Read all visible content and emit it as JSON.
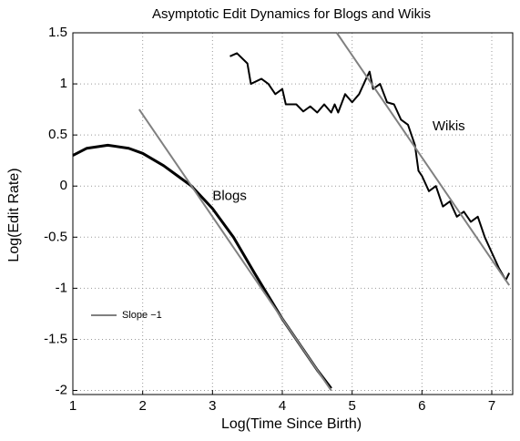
{
  "chart_data": {
    "type": "line",
    "title": "Asymptotic Edit Dynamics for Blogs and Wikis",
    "x_label": "Log(Time Since Birth)",
    "y_label": "Log(Edit Rate)",
    "xlim": [
      1,
      7.3
    ],
    "ylim": [
      -2.04,
      1.5
    ],
    "xticks": [
      1,
      2,
      3,
      4,
      5,
      6,
      7
    ],
    "yticks": [
      -2,
      -1.5,
      -1,
      -0.5,
      0,
      0.5,
      1,
      1.5
    ],
    "grid": true,
    "legend": "lower left",
    "series": [
      {
        "color": "#000000",
        "width": 3,
        "x": [
          1,
          1.2,
          1.5,
          1.8,
          2.0,
          2.3,
          2.5,
          2.7,
          3.0,
          3.3,
          3.6,
          4.0,
          4.3,
          4.5,
          4.7
        ],
        "values": [
          0.3,
          0.37,
          0.4,
          0.37,
          0.32,
          0.2,
          0.1,
          0,
          -0.22,
          -0.5,
          -0.85,
          -1.3,
          -1.6,
          -1.8,
          -1.98
        ]
      },
      {
        "color": "#000000",
        "width": 2,
        "x": [
          3.25,
          3.35,
          3.5,
          3.55,
          3.7,
          3.8,
          3.9,
          4.0,
          4.05,
          4.2,
          4.3,
          4.4,
          4.5,
          4.6,
          4.7,
          4.75,
          4.8,
          4.9,
          5.0,
          5.1,
          5.2,
          5.25,
          5.3,
          5.4,
          5.5,
          5.6,
          5.7,
          5.8,
          5.9,
          5.95,
          6.0,
          6.1,
          6.2,
          6.3,
          6.4,
          6.5,
          6.6,
          6.7,
          6.8,
          6.9,
          7.0,
          7.1,
          7.2,
          7.25
        ],
        "values": [
          1.27,
          1.3,
          1.2,
          1.0,
          1.05,
          1.0,
          0.9,
          0.95,
          0.8,
          0.8,
          0.73,
          0.78,
          0.72,
          0.8,
          0.72,
          0.8,
          0.72,
          0.9,
          0.82,
          0.9,
          1.05,
          1.12,
          0.95,
          1.0,
          0.82,
          0.8,
          0.65,
          0.6,
          0.4,
          0.15,
          0.1,
          -0.05,
          0.0,
          -0.2,
          -0.15,
          -0.3,
          -0.25,
          -0.35,
          -0.3,
          -0.5,
          -0.65,
          -0.8,
          -0.92,
          -0.85
        ]
      },
      {
        "name": "Slope −1",
        "color": "#808080",
        "width": 2,
        "x": [
          1.95,
          4.7
        ],
        "values": [
          0.75,
          -2
        ]
      },
      {
        "color": "#808080",
        "width": 2,
        "x": [
          4.78,
          7.25
        ],
        "values": [
          1.5,
          -0.97
        ]
      }
    ],
    "annotations": [
      {
        "text": "Blogs",
        "x": 3.0,
        "y": -0.1
      },
      {
        "text": "Wikis",
        "x": 6.15,
        "y": 0.58
      }
    ]
  }
}
